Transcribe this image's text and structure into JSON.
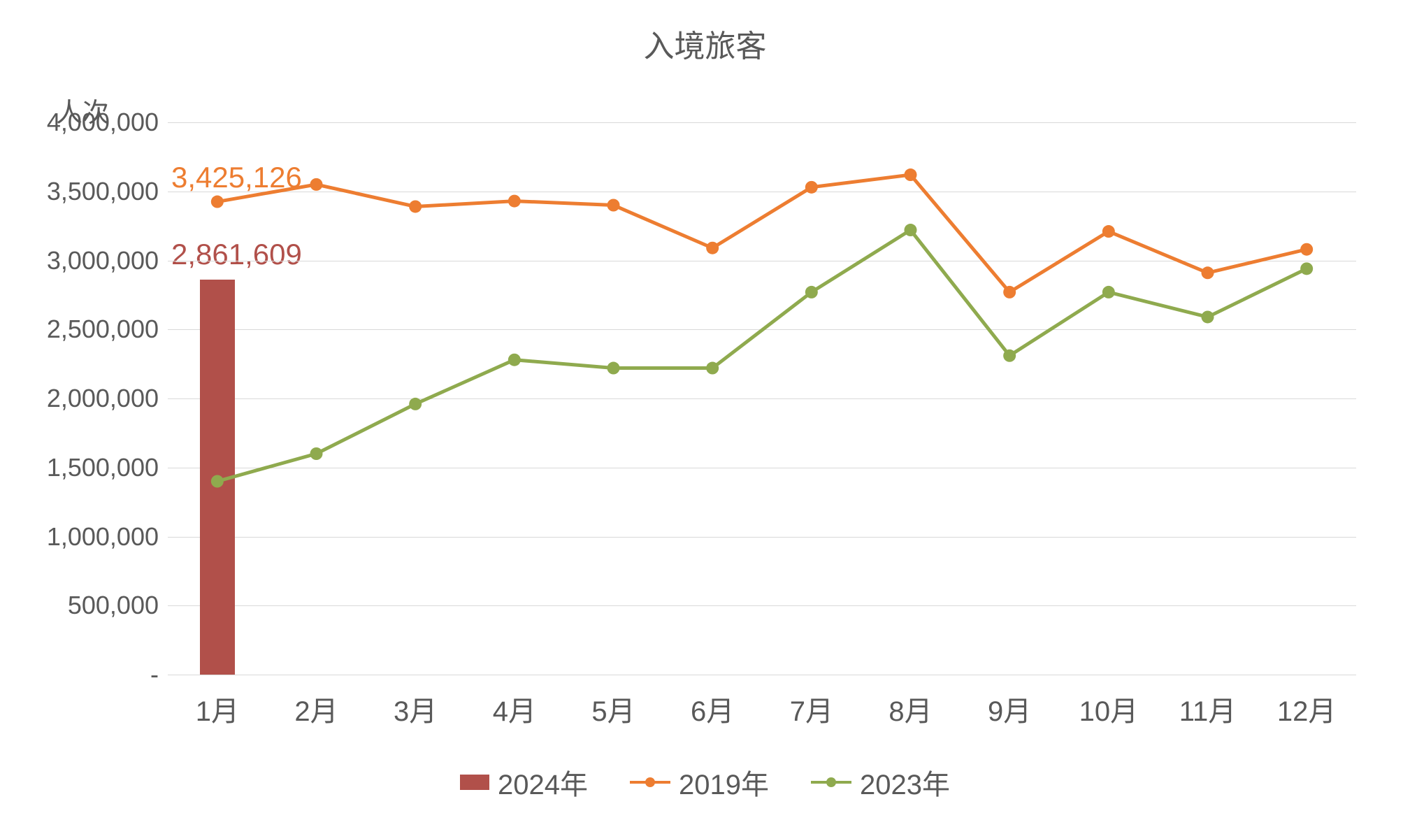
{
  "chart": {
    "type": "combo-bar-line",
    "title": "入境旅客",
    "title_fontsize": 44,
    "y_axis_title": "人次",
    "background_color": "#ffffff",
    "grid_color": "#d9d9d9",
    "text_color": "#595959",
    "categories": [
      "1月",
      "2月",
      "3月",
      "4月",
      "5月",
      "6月",
      "7月",
      "8月",
      "9月",
      "10月",
      "11月",
      "12月"
    ],
    "ylim": [
      0,
      4000000
    ],
    "ytick_step": 500000,
    "ytick_labels": [
      "-",
      "500,000",
      "1,000,000",
      "1,500,000",
      "2,000,000",
      "2,500,000",
      "3,000,000",
      "3,500,000",
      "4,000,000"
    ],
    "series": {
      "bar_2024": {
        "label": "2024年",
        "type": "bar",
        "color": "#b1504a",
        "bar_width": 0.35,
        "values": [
          2861609,
          null,
          null,
          null,
          null,
          null,
          null,
          null,
          null,
          null,
          null,
          null
        ],
        "data_label_text": "2861609",
        "data_label_color": "#b1504a"
      },
      "line_2019": {
        "label": "2019年",
        "type": "line",
        "color": "#ed7d31",
        "marker": "circle",
        "marker_size": 9,
        "line_width": 5,
        "values": [
          3425126,
          3550000,
          3390000,
          3430000,
          3400000,
          3090000,
          3530000,
          3620000,
          2770000,
          3210000,
          2910000,
          3080000
        ],
        "data_label_text": "3425126",
        "data_label_color": "#ed7d31"
      },
      "line_2023": {
        "label": "2023年",
        "type": "line",
        "color": "#8faa4e",
        "marker": "circle",
        "marker_size": 9,
        "line_width": 5,
        "values": [
          1400000,
          1600000,
          1960000,
          2280000,
          2220000,
          2220000,
          2770000,
          3220000,
          2310000,
          2770000,
          2590000,
          2940000
        ]
      }
    },
    "legend_order": [
      "bar_2024",
      "line_2019",
      "line_2023"
    ],
    "data_label_top": "3,425,126",
    "data_label_bottom": "2,861,609"
  }
}
